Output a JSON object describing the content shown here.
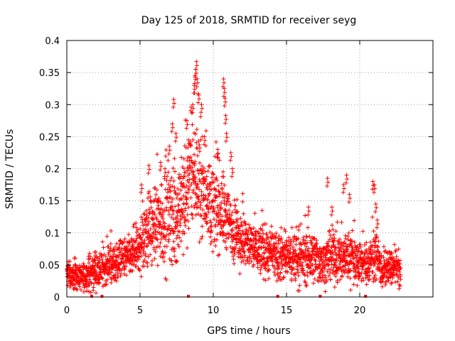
{
  "chart_data": {
    "type": "scatter",
    "title": "Day 125 of 2018, SRMTID for receiver seyg",
    "xlabel": "GPS time / hours",
    "ylabel": "SRMTID / TECUs",
    "xlim": [
      0,
      25
    ],
    "ylim": [
      0,
      0.4
    ],
    "grid": true,
    "marker": "+",
    "series_color": "#ff0000",
    "x_ticks": [
      0,
      5,
      10,
      15,
      20
    ],
    "x_tick_labels": [
      "0",
      "5",
      "10",
      "15",
      "20"
    ],
    "y_ticks": [
      0,
      0.05,
      0.1,
      0.15,
      0.2,
      0.25,
      0.3,
      0.35,
      0.4
    ],
    "y_tick_labels": [
      "0",
      "0.05",
      "0.1",
      "0.15",
      "0.2",
      "0.25",
      "0.3",
      "0.35",
      "0.4"
    ],
    "envelope": {
      "x": [
        0,
        0.5,
        1.0,
        1.5,
        2.0,
        2.5,
        3.0,
        3.5,
        4.0,
        4.5,
        5.0,
        5.5,
        6.0,
        6.5,
        7.0,
        7.5,
        8.0,
        8.5,
        9.0,
        9.5,
        10.0,
        10.5,
        11.0,
        11.5,
        12.0,
        12.5,
        13.0,
        13.5,
        14.0,
        14.5,
        15.0,
        15.5,
        16.0,
        16.5,
        17.0,
        17.5,
        18.0,
        18.5,
        19.0,
        19.5,
        20.0,
        20.5,
        21.0,
        21.5,
        22.0,
        22.5,
        22.8
      ],
      "center": [
        0.035,
        0.032,
        0.03,
        0.035,
        0.04,
        0.045,
        0.05,
        0.055,
        0.06,
        0.065,
        0.08,
        0.1,
        0.11,
        0.12,
        0.13,
        0.12,
        0.15,
        0.2,
        0.18,
        0.16,
        0.14,
        0.14,
        0.12,
        0.1,
        0.09,
        0.08,
        0.075,
        0.07,
        0.065,
        0.06,
        0.065,
        0.06,
        0.06,
        0.06,
        0.06,
        0.055,
        0.06,
        0.06,
        0.065,
        0.06,
        0.055,
        0.05,
        0.07,
        0.04,
        0.045,
        0.045,
        0.04
      ],
      "spread": [
        0.015,
        0.015,
        0.015,
        0.02,
        0.02,
        0.02,
        0.02,
        0.025,
        0.025,
        0.025,
        0.035,
        0.045,
        0.05,
        0.06,
        0.06,
        0.05,
        0.06,
        0.07,
        0.06,
        0.05,
        0.05,
        0.05,
        0.04,
        0.04,
        0.035,
        0.03,
        0.03,
        0.03,
        0.03,
        0.03,
        0.03,
        0.03,
        0.03,
        0.03,
        0.03,
        0.025,
        0.03,
        0.03,
        0.03,
        0.03,
        0.025,
        0.025,
        0.03,
        0.02,
        0.02,
        0.02,
        0.02
      ]
    },
    "peaks": [
      {
        "x": 6.4,
        "y": 0.21
      },
      {
        "x": 6.7,
        "y": 0.2
      },
      {
        "x": 7.0,
        "y": 0.235
      },
      {
        "x": 7.2,
        "y": 0.27
      },
      {
        "x": 7.3,
        "y": 0.308
      },
      {
        "x": 7.45,
        "y": 0.255
      },
      {
        "x": 8.0,
        "y": 0.2
      },
      {
        "x": 8.2,
        "y": 0.275
      },
      {
        "x": 8.3,
        "y": 0.245
      },
      {
        "x": 8.6,
        "y": 0.3
      },
      {
        "x": 8.7,
        "y": 0.33
      },
      {
        "x": 8.75,
        "y": 0.345
      },
      {
        "x": 8.8,
        "y": 0.355
      },
      {
        "x": 8.85,
        "y": 0.367
      },
      {
        "x": 8.9,
        "y": 0.34
      },
      {
        "x": 9.0,
        "y": 0.315
      },
      {
        "x": 9.2,
        "y": 0.3
      },
      {
        "x": 9.4,
        "y": 0.25
      },
      {
        "x": 10.3,
        "y": 0.23
      },
      {
        "x": 10.7,
        "y": 0.34
      },
      {
        "x": 10.75,
        "y": 0.325
      },
      {
        "x": 10.8,
        "y": 0.31
      },
      {
        "x": 10.85,
        "y": 0.283
      },
      {
        "x": 10.9,
        "y": 0.255
      },
      {
        "x": 11.2,
        "y": 0.225
      },
      {
        "x": 11.3,
        "y": 0.2
      },
      {
        "x": 5.1,
        "y": 0.175
      },
      {
        "x": 5.6,
        "y": 0.205
      },
      {
        "x": 17.8,
        "y": 0.185
      },
      {
        "x": 18.1,
        "y": 0.14
      },
      {
        "x": 18.9,
        "y": 0.175
      },
      {
        "x": 19.1,
        "y": 0.19
      },
      {
        "x": 19.3,
        "y": 0.16
      },
      {
        "x": 20.9,
        "y": 0.18
      },
      {
        "x": 21.0,
        "y": 0.175
      },
      {
        "x": 21.1,
        "y": 0.145
      },
      {
        "x": 21.2,
        "y": 0.12
      },
      {
        "x": 0.1,
        "y": 0.055
      },
      {
        "x": 1.9,
        "y": 0.07
      },
      {
        "x": 16.5,
        "y": 0.14
      }
    ],
    "zero_markers_x": [
      1.7,
      2.4,
      8.3,
      14.4,
      17.3,
      20.4
    ]
  }
}
